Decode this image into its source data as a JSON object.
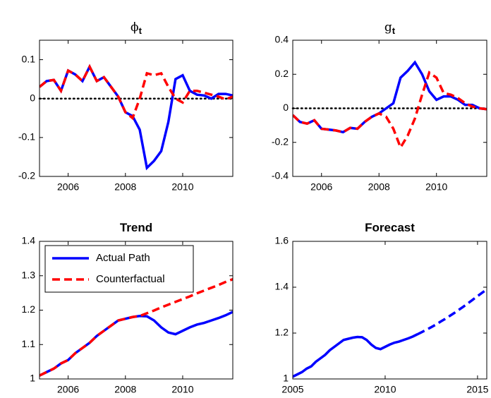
{
  "chart_data": [
    {
      "type": "line",
      "title": "ϕ",
      "title_subscript": "t",
      "x": [
        2005,
        2005.25,
        2005.5,
        2005.75,
        2006,
        2006.25,
        2006.5,
        2006.75,
        2007,
        2007.25,
        2007.5,
        2007.75,
        2008,
        2008.25,
        2008.5,
        2008.75,
        2009,
        2009.25,
        2009.5,
        2009.75,
        2010,
        2010.25,
        2010.5,
        2010.75,
        2011,
        2011.25,
        2011.5,
        2011.75
      ],
      "xlim": [
        2005,
        2011.75
      ],
      "xticks": [
        2006,
        2008,
        2010
      ],
      "ylim": [
        -0.2,
        0.15
      ],
      "yticks": [
        0.1,
        0,
        -0.1,
        -0.2
      ],
      "zero_line": true,
      "series": [
        {
          "color": "#0000ff",
          "dashed": false,
          "values": [
            0.03,
            0.045,
            0.048,
            0.02,
            0.072,
            0.062,
            0.045,
            0.082,
            0.045,
            0.055,
            0.03,
            0.005,
            -0.035,
            -0.045,
            -0.08,
            -0.178,
            -0.16,
            -0.135,
            -0.06,
            0.05,
            0.06,
            0.02,
            0.01,
            0.008,
            0.0,
            0.012,
            0.012,
            0.008
          ]
        },
        {
          "color": "#ff0000",
          "dashed": true,
          "values": [
            0.03,
            0.045,
            0.048,
            0.02,
            0.072,
            0.062,
            0.045,
            0.082,
            0.045,
            0.055,
            0.03,
            0.005,
            -0.035,
            -0.05,
            0.0,
            0.065,
            0.06,
            0.065,
            0.03,
            0.0,
            -0.01,
            0.02,
            0.02,
            0.015,
            0.01,
            0.005,
            -0.002,
            0.005
          ]
        }
      ]
    },
    {
      "type": "line",
      "title": "g",
      "title_subscript": "t",
      "x": [
        2005,
        2005.25,
        2005.5,
        2005.75,
        2006,
        2006.25,
        2006.5,
        2006.75,
        2007,
        2007.25,
        2007.5,
        2007.75,
        2008,
        2008.25,
        2008.5,
        2008.75,
        2009,
        2009.25,
        2009.5,
        2009.75,
        2010,
        2010.25,
        2010.5,
        2010.75,
        2011,
        2011.25,
        2011.5,
        2011.75
      ],
      "xlim": [
        2005,
        2011.75
      ],
      "xticks": [
        2006,
        2008,
        2010
      ],
      "ylim": [
        -0.4,
        0.4
      ],
      "yticks": [
        0.4,
        0.2,
        0,
        -0.2,
        -0.4
      ],
      "zero_line": true,
      "series": [
        {
          "color": "#0000ff",
          "dashed": false,
          "values": [
            -0.04,
            -0.08,
            -0.09,
            -0.07,
            -0.12,
            -0.125,
            -0.13,
            -0.14,
            -0.115,
            -0.12,
            -0.08,
            -0.05,
            -0.03,
            0.0,
            0.03,
            0.18,
            0.22,
            0.27,
            0.2,
            0.1,
            0.05,
            0.07,
            0.07,
            0.05,
            0.02,
            0.02,
            0.0,
            -0.005
          ]
        },
        {
          "color": "#ff0000",
          "dashed": true,
          "values": [
            -0.04,
            -0.08,
            -0.09,
            -0.07,
            -0.12,
            -0.125,
            -0.13,
            -0.14,
            -0.115,
            -0.12,
            -0.08,
            -0.05,
            -0.03,
            -0.05,
            -0.12,
            -0.23,
            -0.16,
            -0.06,
            0.08,
            0.21,
            0.18,
            0.09,
            0.08,
            0.06,
            0.03,
            0.01,
            0.0,
            -0.005
          ]
        }
      ]
    },
    {
      "type": "line",
      "title": "Trend",
      "x": [
        2005,
        2005.25,
        2005.5,
        2005.75,
        2006,
        2006.25,
        2006.5,
        2006.75,
        2007,
        2007.25,
        2007.5,
        2007.75,
        2008,
        2008.25,
        2008.5,
        2008.75,
        2009,
        2009.25,
        2009.5,
        2009.75,
        2010,
        2010.25,
        2010.5,
        2010.75,
        2011,
        2011.25,
        2011.5,
        2011.75
      ],
      "xlim": [
        2005,
        2011.75
      ],
      "xticks": [
        2006,
        2008,
        2010
      ],
      "ylim": [
        1,
        1.4
      ],
      "yticks": [
        1.4,
        1.3,
        1.2,
        1.1,
        1
      ],
      "legend": "upper left",
      "series": [
        {
          "name": "Actual Path",
          "color": "#0000ff",
          "dashed": false,
          "values": [
            1.01,
            1.02,
            1.03,
            1.045,
            1.055,
            1.075,
            1.09,
            1.105,
            1.125,
            1.14,
            1.155,
            1.17,
            1.175,
            1.18,
            1.183,
            1.182,
            1.17,
            1.15,
            1.135,
            1.13,
            1.14,
            1.15,
            1.158,
            1.163,
            1.17,
            1.177,
            1.185,
            1.195
          ]
        },
        {
          "name": "Counterfactual",
          "color": "#ff0000",
          "dashed": true,
          "values": [
            1.01,
            1.02,
            1.03,
            1.045,
            1.055,
            1.075,
            1.09,
            1.105,
            1.125,
            1.14,
            1.155,
            1.17,
            1.175,
            1.18,
            1.183,
            1.191,
            1.199,
            1.208,
            1.216,
            1.224,
            1.232,
            1.24,
            1.249,
            1.257,
            1.265,
            1.273,
            1.282,
            1.29
          ]
        }
      ]
    },
    {
      "type": "line",
      "title": "Forecast",
      "x": [
        2005,
        2005.25,
        2005.5,
        2005.75,
        2006,
        2006.25,
        2006.5,
        2006.75,
        2007,
        2007.25,
        2007.5,
        2007.75,
        2008,
        2008.25,
        2008.5,
        2008.75,
        2009,
        2009.25,
        2009.5,
        2009.75,
        2010,
        2010.25,
        2010.5,
        2010.75,
        2011,
        2011.25,
        2011.5,
        2011.75,
        2012,
        2012.25,
        2012.5,
        2012.75,
        2013,
        2013.25,
        2013.5,
        2013.75,
        2014,
        2014.25,
        2014.5,
        2014.75,
        2015,
        2015.25,
        2015.5
      ],
      "xlim": [
        2005,
        2015.5
      ],
      "xticks": [
        2005,
        2010,
        2015
      ],
      "ylim": [
        1,
        1.6
      ],
      "yticks": [
        1.6,
        1.4,
        1.2,
        1
      ],
      "series": [
        {
          "color": "#0000ff",
          "dashed": false,
          "values": [
            1.01,
            1.02,
            1.03,
            1.045,
            1.055,
            1.075,
            1.09,
            1.105,
            1.125,
            1.14,
            1.155,
            1.17,
            1.175,
            1.18,
            1.183,
            1.182,
            1.17,
            1.15,
            1.135,
            1.13,
            1.14,
            1.15,
            1.158,
            1.163,
            1.17,
            1.177,
            1.185,
            1.195,
            null,
            null,
            null,
            null,
            null,
            null,
            null,
            null,
            null,
            null,
            null,
            null,
            null,
            null,
            null
          ]
        },
        {
          "color": "#0000ff",
          "dashed": true,
          "values": [
            null,
            null,
            null,
            null,
            null,
            null,
            null,
            null,
            null,
            null,
            null,
            null,
            null,
            null,
            null,
            null,
            null,
            null,
            null,
            null,
            null,
            null,
            null,
            null,
            null,
            null,
            null,
            1.195,
            1.205,
            1.215,
            1.226,
            1.237,
            1.25,
            1.262,
            1.275,
            1.288,
            1.302,
            1.316,
            1.331,
            1.346,
            1.361,
            1.376,
            1.39
          ]
        }
      ]
    }
  ]
}
